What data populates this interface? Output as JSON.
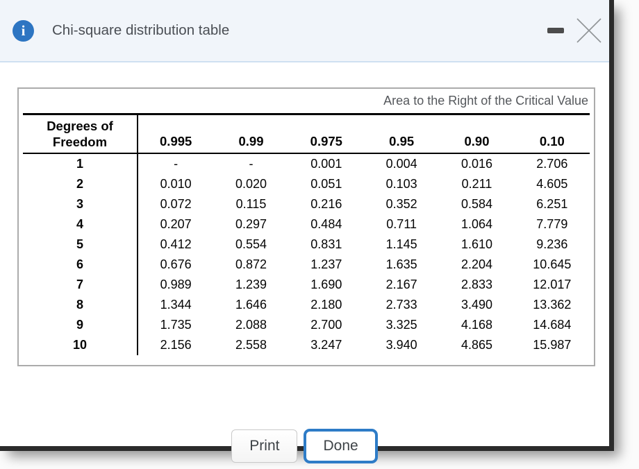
{
  "dialog": {
    "title": "Chi-square distribution table"
  },
  "table": {
    "area_label": "Area to the Right of the Critical Value",
    "dof_header_line1": "Degrees of",
    "dof_header_line2": "Freedom",
    "columns": [
      "0.995",
      "0.99",
      "0.975",
      "0.95",
      "0.90",
      "0.10"
    ],
    "rows": [
      {
        "dof": "1",
        "values": [
          "-",
          "-",
          "0.001",
          "0.004",
          "0.016",
          "2.706"
        ]
      },
      {
        "dof": "2",
        "values": [
          "0.010",
          "0.020",
          "0.051",
          "0.103",
          "0.211",
          "4.605"
        ]
      },
      {
        "dof": "3",
        "values": [
          "0.072",
          "0.115",
          "0.216",
          "0.352",
          "0.584",
          "6.251"
        ]
      },
      {
        "dof": "4",
        "values": [
          "0.207",
          "0.297",
          "0.484",
          "0.711",
          "1.064",
          "7.779"
        ]
      },
      {
        "dof": "5",
        "values": [
          "0.412",
          "0.554",
          "0.831",
          "1.145",
          "1.610",
          "9.236"
        ]
      },
      {
        "dof": "6",
        "values": [
          "0.676",
          "0.872",
          "1.237",
          "1.635",
          "2.204",
          "10.645"
        ]
      },
      {
        "dof": "7",
        "values": [
          "0.989",
          "1.239",
          "1.690",
          "2.167",
          "2.833",
          "12.017"
        ]
      },
      {
        "dof": "8",
        "values": [
          "1.344",
          "1.646",
          "2.180",
          "2.733",
          "3.490",
          "13.362"
        ]
      },
      {
        "dof": "9",
        "values": [
          "1.735",
          "2.088",
          "2.700",
          "3.325",
          "4.168",
          "14.684"
        ]
      },
      {
        "dof": "10",
        "values": [
          "2.156",
          "2.558",
          "3.247",
          "3.940",
          "4.865",
          "15.987"
        ]
      }
    ]
  },
  "buttons": {
    "print": "Print",
    "done": "Done"
  },
  "icons": {
    "info": "info-icon",
    "minimize": "minimize-icon",
    "close": "close-icon"
  },
  "colors": {
    "accent_blue": "#2e7cc7",
    "info_icon_blue": "#2d75c2",
    "header_bg": "#f1f5fa",
    "header_border": "#cfe0f1",
    "window_border": "#2b2b2b",
    "table_border_gray": "#ababab",
    "area_label_text": "#55585c",
    "title_text": "#4a4e54"
  }
}
